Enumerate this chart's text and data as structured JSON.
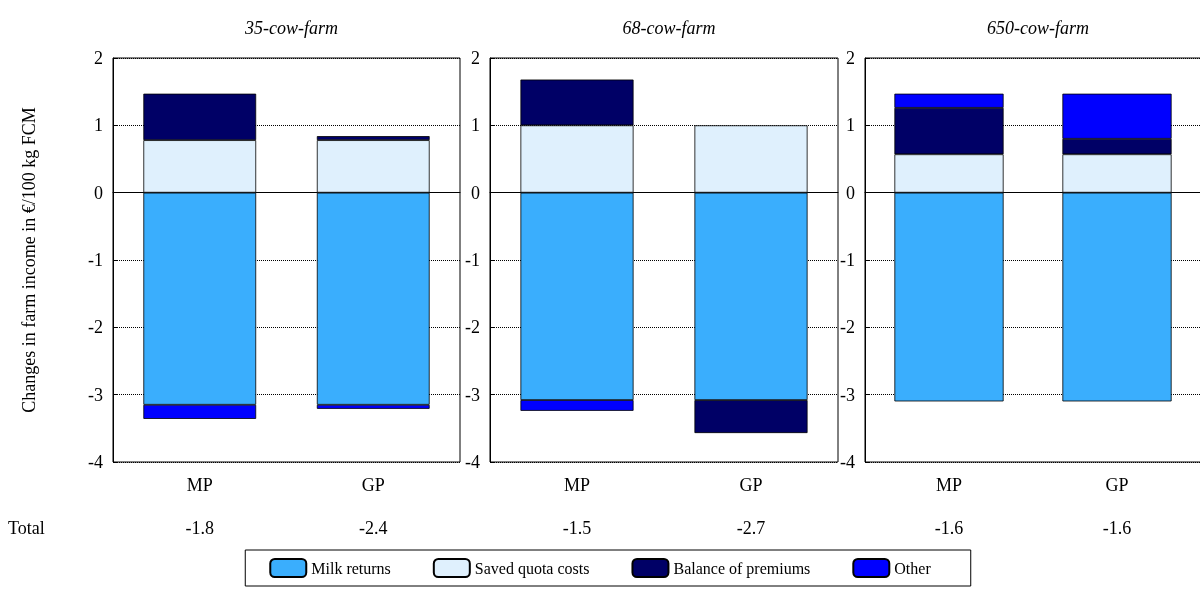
{
  "chart_data": [
    {
      "type": "bar",
      "title": "35-cow-farm",
      "ylabel": "Changes in farm income in €/100 kg FCM",
      "categories": [
        "MP",
        "GP"
      ],
      "stacked": true,
      "ylim": [
        -4,
        2
      ],
      "yticks": [
        -4,
        -3,
        -2,
        -1,
        0,
        1,
        2
      ],
      "grid": "y",
      "legend": "bottom",
      "annotations": [
        "Total",
        "-1.8",
        "-2.4"
      ],
      "series": [
        {
          "name": "Milk returns",
          "color": "#3aaefd",
          "values": [
            -3.15,
            -3.15
          ]
        },
        {
          "name": "Saved quota costs",
          "color": "#dff0fd",
          "values": [
            0.78,
            0.78
          ]
        },
        {
          "name": "Balance of premiums",
          "color": "#000066",
          "values": [
            0.69,
            0.06
          ]
        },
        {
          "name": "Other",
          "color": "#0000ff",
          "values": [
            -0.21,
            -0.06
          ]
        }
      ]
    },
    {
      "type": "bar",
      "title": "68-cow-farm",
      "categories": [
        "MP",
        "GP"
      ],
      "stacked": true,
      "ylim": [
        -4,
        2
      ],
      "yticks": [
        -4,
        -3,
        -2,
        -1,
        0,
        1,
        2
      ],
      "grid": "y",
      "annotations": [
        "-1.5",
        "-2.7"
      ],
      "series": [
        {
          "name": "Milk returns",
          "color": "#3aaefd",
          "values": [
            -3.08,
            -3.08
          ]
        },
        {
          "name": "Saved quota costs",
          "color": "#dff0fd",
          "values": [
            1.0,
            1.0
          ]
        },
        {
          "name": "Balance of premiums",
          "color": "#000066",
          "values": [
            0.68,
            -0.49
          ]
        },
        {
          "name": "Other",
          "color": "#0000ff",
          "values": [
            -0.16,
            null
          ]
        }
      ]
    },
    {
      "type": "bar",
      "title": "650-cow-farm",
      "categories": [
        "MP",
        "GP"
      ],
      "stacked": true,
      "ylim": [
        -4,
        2
      ],
      "yticks": [
        -4,
        -3,
        -2,
        -1,
        0,
        1,
        2
      ],
      "grid": "y",
      "annotations": [
        "-1.6",
        "-1.6"
      ],
      "series": [
        {
          "name": "Milk returns",
          "color": "#3aaefd",
          "values": [
            -3.1,
            -3.1
          ]
        },
        {
          "name": "Saved quota costs",
          "color": "#dff0fd",
          "values": [
            0.57,
            0.57
          ]
        },
        {
          "name": "Balance of premiums",
          "color": "#000066",
          "values": [
            0.69,
            0.23
          ]
        },
        {
          "name": "Other",
          "color": "#0000ff",
          "values": [
            0.21,
            0.67
          ]
        }
      ]
    }
  ]
}
